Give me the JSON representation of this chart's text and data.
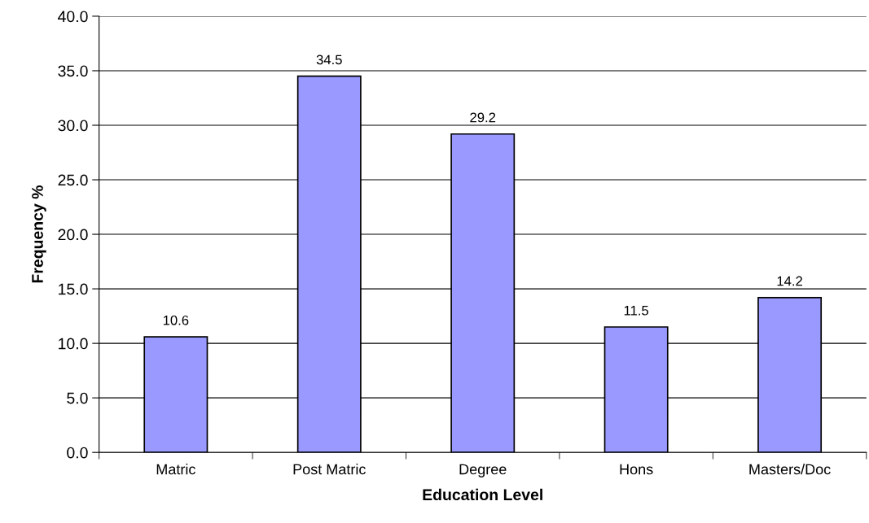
{
  "chart_data": {
    "type": "bar",
    "xlabel": "Education Level",
    "ylabel": "Frequency %",
    "categories": [
      "Matric",
      "Post Matric",
      "Degree",
      "Hons",
      "Masters/Doc"
    ],
    "values": [
      10.6,
      34.5,
      29.2,
      11.5,
      14.2
    ],
    "color": "#9999ff",
    "ylim": [
      0,
      40
    ],
    "yticks": [
      {
        "value": 0,
        "label": "0.0"
      },
      {
        "value": 5,
        "label": "5.0"
      },
      {
        "value": 10,
        "label": "10.0"
      },
      {
        "value": 15,
        "label": "15.0"
      },
      {
        "value": 20,
        "label": "20.0"
      },
      {
        "value": 25,
        "label": "25.0"
      },
      {
        "value": 30,
        "label": "30.0"
      },
      {
        "value": 35,
        "label": "35.0"
      },
      {
        "value": 40,
        "label": "40.0"
      }
    ],
    "grid": "y",
    "data_labels": true
  }
}
